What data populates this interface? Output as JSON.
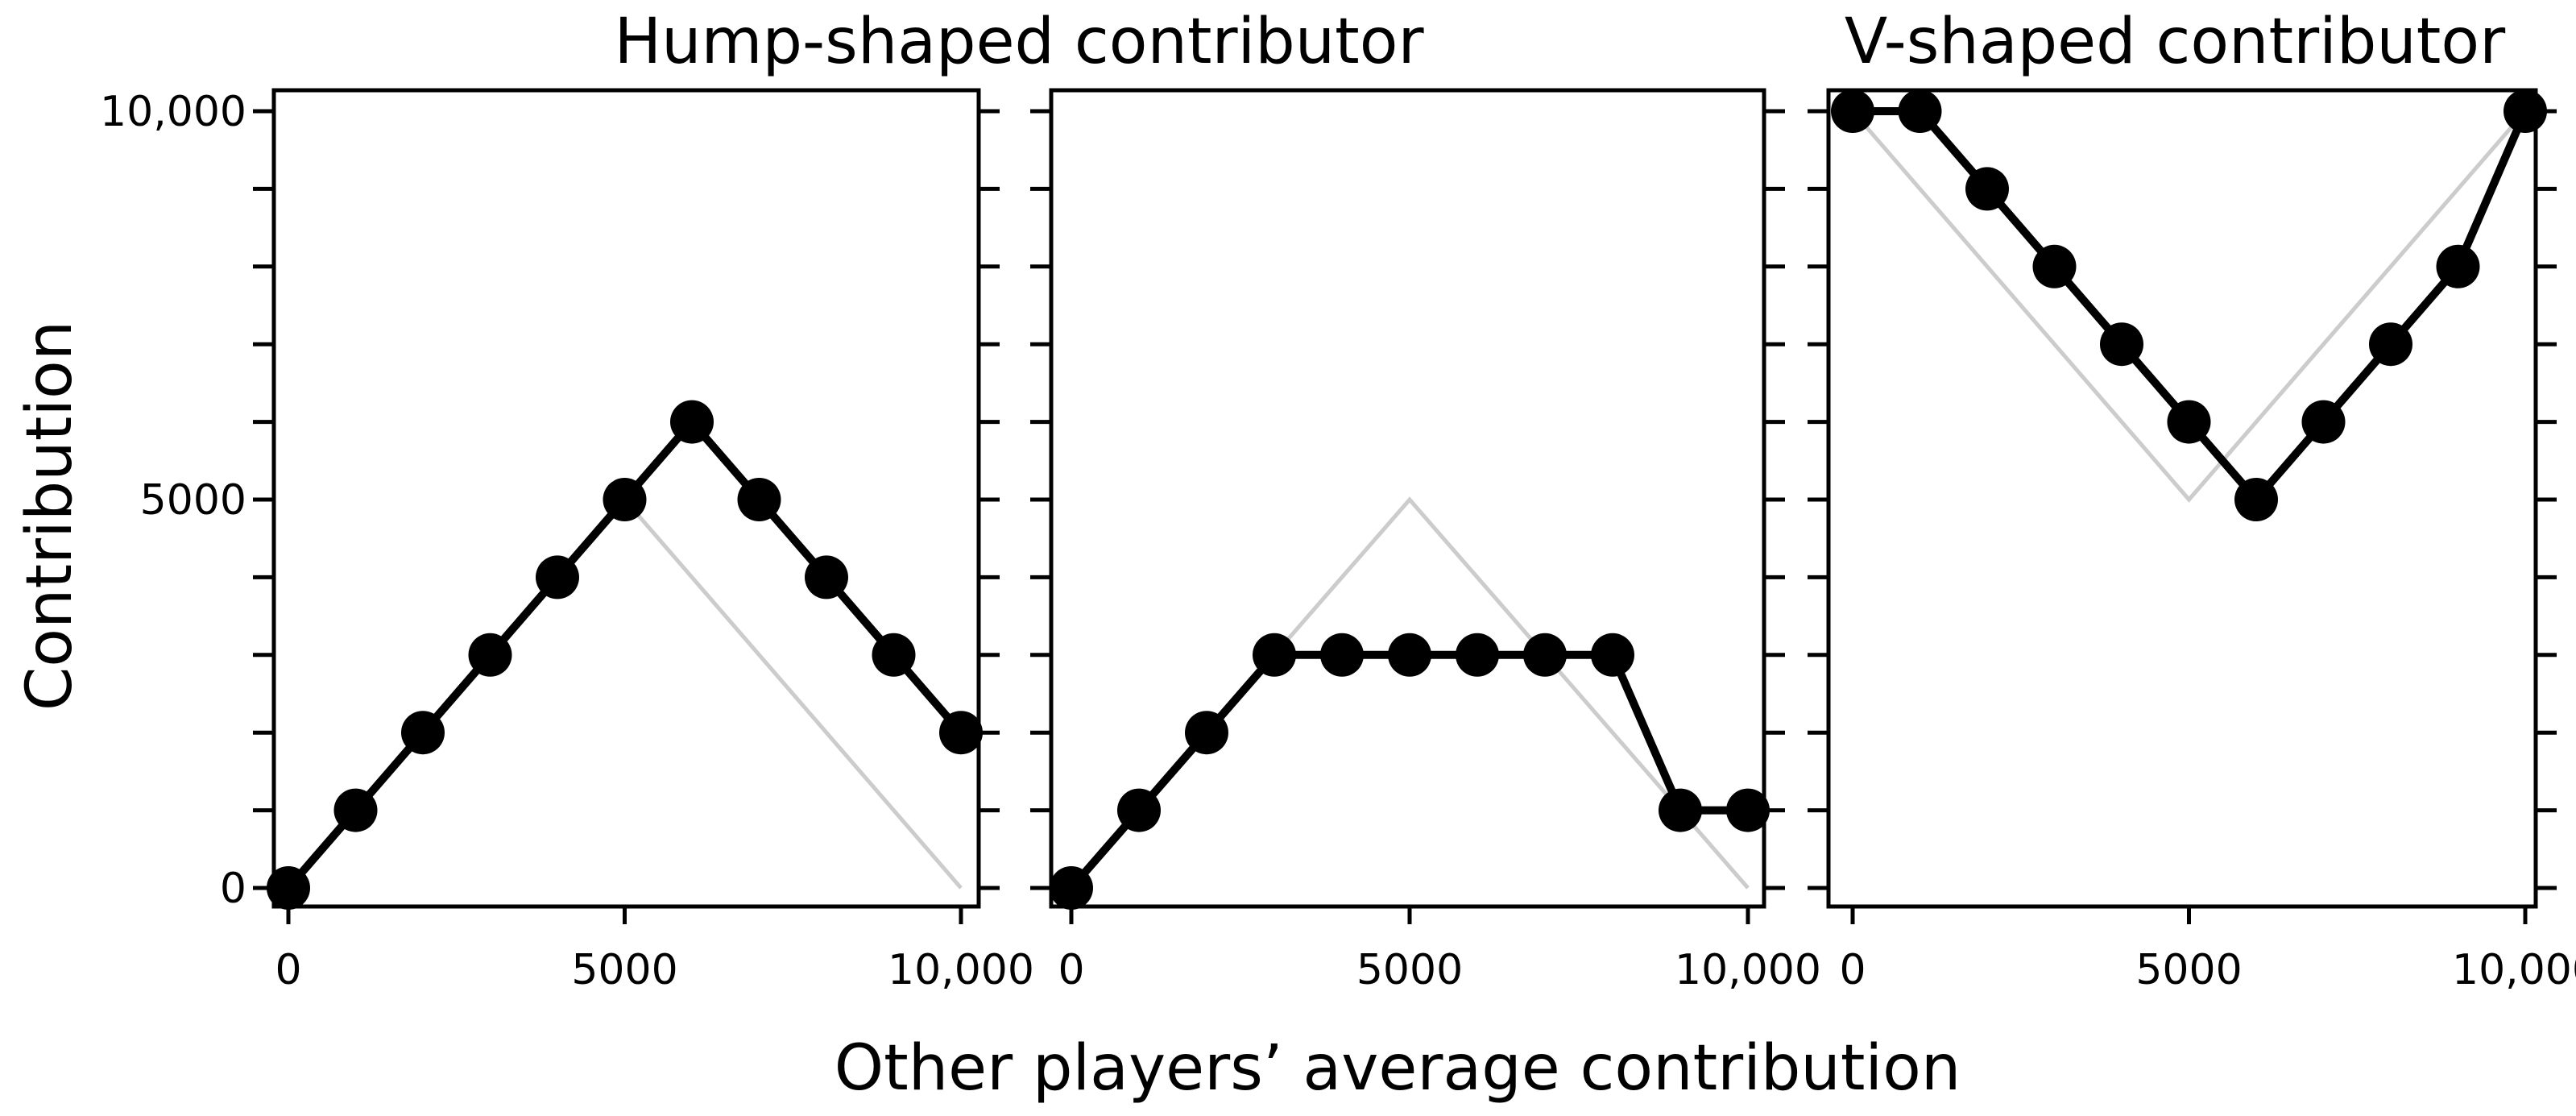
{
  "colors": {
    "series": "#000000",
    "reference": "#cccccc",
    "frame": "#000000"
  },
  "chart_data": {
    "type": "line",
    "figure_titles": [
      "Hump-shaped contributor",
      "V-shaped contributor"
    ],
    "xlabel": "Other players’ average contribution",
    "ylabel": "Contribution",
    "xlim": [
      0,
      10000
    ],
    "ylim": [
      0,
      10000
    ],
    "xticks": [
      0,
      5000,
      10000
    ],
    "xtick_labels": [
      "0",
      "5000",
      "10,000"
    ],
    "yticks": [
      0,
      5000,
      10000
    ],
    "ytick_labels": [
      "0",
      "5000",
      "10,000"
    ],
    "minor_ytick_step": 1000,
    "grid": false,
    "panels": [
      {
        "x": [
          0,
          1000,
          2000,
          3000,
          4000,
          5000,
          6000,
          7000,
          8000,
          9000,
          10000
        ],
        "values": [
          0,
          1000,
          2000,
          3000,
          4000,
          5000,
          6000,
          5000,
          4000,
          3000,
          2000
        ],
        "reference": {
          "x": [
            0,
            5000,
            10000
          ],
          "y": [
            0,
            5000,
            0
          ]
        }
      },
      {
        "x": [
          0,
          1000,
          2000,
          3000,
          4000,
          5000,
          6000,
          7000,
          8000,
          9000,
          10000
        ],
        "values": [
          0,
          1000,
          2000,
          3000,
          3000,
          3000,
          3000,
          3000,
          3000,
          1000,
          1000
        ],
        "reference": {
          "x": [
            0,
            5000,
            10000
          ],
          "y": [
            0,
            5000,
            0
          ]
        }
      },
      {
        "x": [
          0,
          1000,
          2000,
          3000,
          4000,
          5000,
          6000,
          7000,
          8000,
          9000,
          10000
        ],
        "values": [
          10000,
          10000,
          9000,
          8000,
          7000,
          6000,
          5000,
          6000,
          7000,
          8000,
          10000
        ],
        "reference": {
          "x": [
            0,
            5000,
            10000
          ],
          "y": [
            10000,
            5000,
            10000
          ]
        }
      }
    ]
  }
}
